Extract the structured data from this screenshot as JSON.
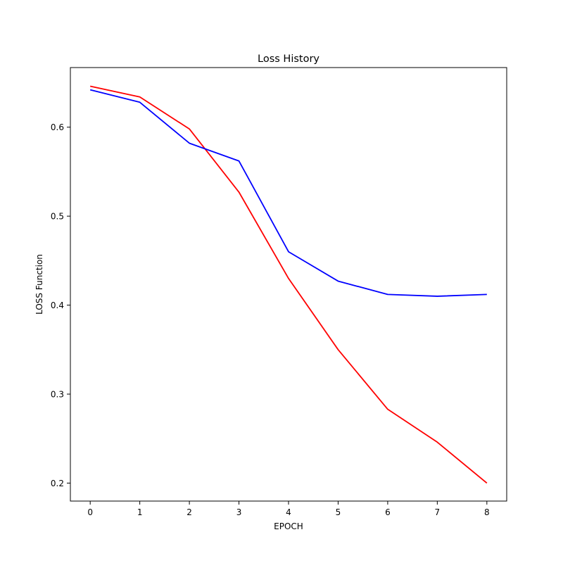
{
  "chart_data": {
    "type": "line",
    "title": "Loss History",
    "xlabel": "EPOCH",
    "ylabel": "LOSS Function",
    "x": [
      0,
      1,
      2,
      3,
      4,
      5,
      6,
      7,
      8
    ],
    "xlim": [
      -0.4,
      8.4
    ],
    "ylim": [
      0.1798,
      0.667
    ],
    "xticks": [
      0,
      1,
      2,
      3,
      4,
      5,
      6,
      7,
      8
    ],
    "yticks": [
      0.2,
      0.3,
      0.4,
      0.5,
      0.6
    ],
    "ytick_labels": [
      "0.2",
      "0.3",
      "0.4",
      "0.5",
      "0.6"
    ],
    "grid": false,
    "legend": "none",
    "series": [
      {
        "color": "#ff0000",
        "values": [
          0.646,
          0.634,
          0.598,
          0.527,
          0.43,
          0.35,
          0.283,
          0.246,
          0.2
        ]
      },
      {
        "color": "#0000ff",
        "values": [
          0.642,
          0.628,
          0.582,
          0.562,
          0.46,
          0.427,
          0.412,
          0.41,
          0.412
        ]
      }
    ]
  }
}
